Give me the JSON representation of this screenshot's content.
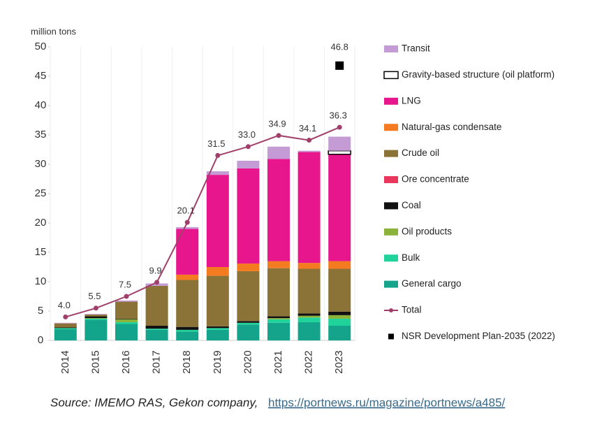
{
  "chart_data": {
    "type": "bar",
    "y_label": "million tons",
    "categories": [
      "2014",
      "2015",
      "2016",
      "2017",
      "2018",
      "2019",
      "2020",
      "2021",
      "2022",
      "2023"
    ],
    "ylim": [
      0,
      50
    ],
    "yticks": [
      0,
      5,
      10,
      15,
      20,
      25,
      30,
      35,
      40,
      45,
      50
    ],
    "series": [
      {
        "name": "General cargo",
        "color": "#14a38b",
        "values": [
          1.9,
          3.5,
          2.8,
          1.8,
          1.5,
          1.8,
          2.7,
          3.0,
          3.1,
          2.5
        ]
      },
      {
        "name": "Bulk",
        "color": "#1fd39a",
        "values": [
          0.2,
          0.2,
          0.3,
          0.2,
          0.3,
          0.3,
          0.3,
          0.6,
          0.8,
          1.2
        ]
      },
      {
        "name": "Oil products",
        "color": "#8bb33a",
        "values": [
          0,
          0.1,
          0.5,
          0,
          0,
          0,
          0,
          0.2,
          0.3,
          0.6
        ]
      },
      {
        "name": "Coal",
        "color": "#111111",
        "values": [
          0.1,
          0.3,
          0.1,
          0.5,
          0.5,
          0.3,
          0.3,
          0.3,
          0.4,
          0.6
        ]
      },
      {
        "name": "Ore concentrate",
        "color": "#e8365d",
        "values": [
          0,
          0,
          0,
          0,
          0,
          0,
          0,
          0,
          0,
          0
        ]
      },
      {
        "name": "Crude oil",
        "color": "#8b7337",
        "values": [
          0.7,
          0.3,
          2.9,
          6.8,
          8.0,
          8.6,
          8.5,
          8.2,
          7.6,
          7.3
        ]
      },
      {
        "name": "Natural-gas condensate",
        "color": "#f47b20",
        "values": [
          0,
          0,
          0,
          0,
          0.9,
          1.5,
          1.3,
          1.2,
          1.0,
          1.3
        ]
      },
      {
        "name": "LNG",
        "color": "#e8168c",
        "values": [
          0,
          0,
          0,
          0,
          7.8,
          15.7,
          16.2,
          17.4,
          18.9,
          18.2
        ]
      },
      {
        "name": "Gravity-based structure (oil platform)",
        "color": "#ffffff",
        "values": [
          0,
          0,
          0,
          0,
          0,
          0,
          0,
          0,
          0,
          0.6
        ]
      },
      {
        "name": "Transit",
        "color": "#c59bd6",
        "values": [
          0.1,
          0.1,
          0.2,
          0.4,
          0.3,
          0.6,
          1.3,
          2.1,
          0.2,
          2.4
        ]
      }
    ],
    "total": {
      "type": "line",
      "name": "Total",
      "color": "#a0406a",
      "values": [
        4.0,
        5.5,
        7.5,
        9.9,
        20.1,
        31.5,
        33.0,
        34.9,
        34.1,
        36.3
      ],
      "value_labels": [
        "4.0",
        "5.5",
        "7.5",
        "9.9",
        "20.1",
        "31.5",
        "33.0",
        "34.9",
        "34.1",
        "36.3"
      ]
    },
    "plan": {
      "type": "scatter",
      "name": "NSR Development Plan-2035 (2022)",
      "color": "#000000",
      "values": [
        null,
        null,
        null,
        null,
        null,
        null,
        null,
        null,
        null,
        46.8
      ]
    }
  },
  "source": {
    "text": "Source: IMEMO RAS, Gekon company,",
    "link": "https://portnews.ru/magazine/portnews/a485/"
  }
}
